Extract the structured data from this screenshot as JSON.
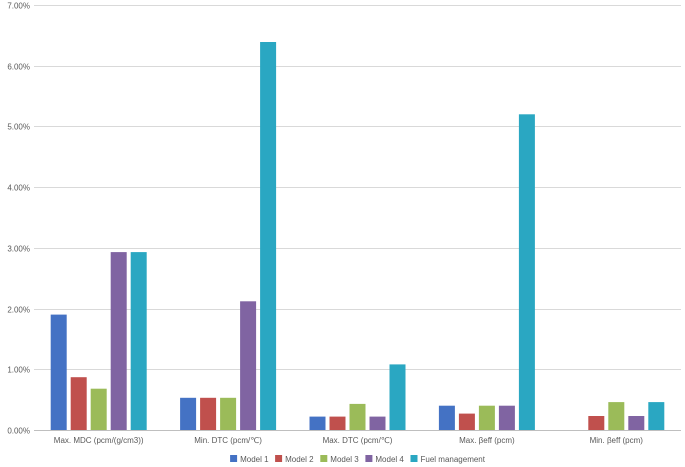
{
  "chart_data": {
    "type": "bar",
    "title": "",
    "xlabel": "",
    "ylabel": "",
    "categories": [
      "Max. MDC (pcm/(g/cm3))",
      "Min. DTC (pcm/℃)",
      "Max. DTC (pcm/℃)",
      "Max. βeff (pcm)",
      "Min. βeff (pcm)"
    ],
    "ylim": [
      0,
      0.07
    ],
    "yticks": [
      0,
      0.01,
      0.02,
      0.03,
      0.04,
      0.05,
      0.06,
      0.07
    ],
    "ytick_labels": [
      "0.00%",
      "1.00%",
      "2.00%",
      "3.00%",
      "4.00%",
      "5.00%",
      "6.00%",
      "7.00%"
    ],
    "grid": true,
    "legend_position": "bottom",
    "series": [
      {
        "name": "Model 1",
        "color": "#4472c4",
        "values": [
          0.019,
          0.0053,
          0.0022,
          0.004,
          0
        ]
      },
      {
        "name": "Model 2",
        "color": "#c0504d",
        "values": [
          0.0087,
          0.0053,
          0.0022,
          0.0027,
          0.0023
        ]
      },
      {
        "name": "Model 3",
        "color": "#9bbb59",
        "values": [
          0.0068,
          0.0053,
          0.0043,
          0.004,
          0.0046
        ]
      },
      {
        "name": "Model 4",
        "color": "#8064a2",
        "values": [
          0.0293,
          0.0212,
          0.0022,
          0.004,
          0.0023
        ]
      },
      {
        "name": "Fuel management",
        "color": "#2aa7c2",
        "values": [
          0.0293,
          0.0639,
          0.0108,
          0.052,
          0.0046
        ]
      }
    ]
  }
}
